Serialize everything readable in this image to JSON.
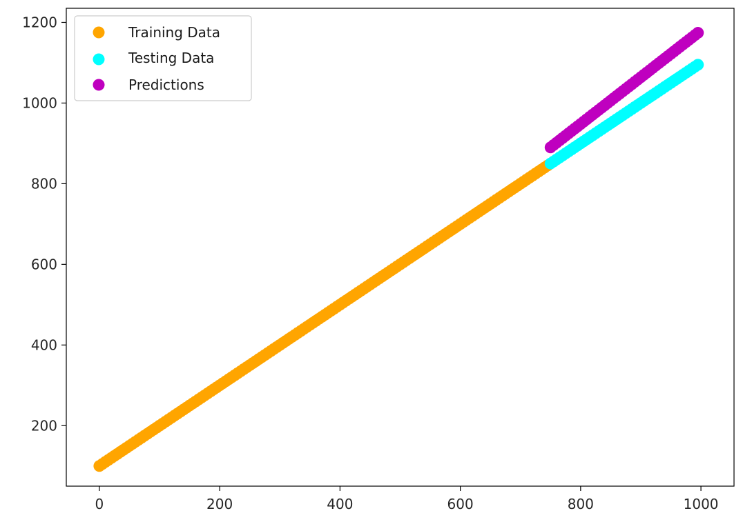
{
  "chart_data": {
    "type": "scatter",
    "title": "",
    "xlabel": "",
    "ylabel": "",
    "xlim": [
      -55,
      1055
    ],
    "ylim": [
      50,
      1235
    ],
    "x_ticks": [
      0,
      200,
      400,
      600,
      800,
      1000
    ],
    "y_ticks": [
      200,
      400,
      600,
      800,
      1000,
      1200
    ],
    "x_tick_labels": [
      "0",
      "200",
      "400",
      "600",
      "800",
      "1000"
    ],
    "y_tick_labels": [
      "200",
      "400",
      "600",
      "800",
      "1000",
      "1200"
    ],
    "grid": false,
    "legend_position": "top-left",
    "series": [
      {
        "name": "Training Data",
        "color": "#ffa500",
        "x_range": [
          0,
          745
        ],
        "x_step": 5,
        "slope": 1.0,
        "intercept": 100
      },
      {
        "name": "Testing Data",
        "color": "#00ffff",
        "x_range": [
          750,
          995
        ],
        "x_step": 5,
        "slope": 1.0,
        "intercept": 100
      },
      {
        "name": "Predictions",
        "color": "#bf00bf",
        "x_range": [
          750,
          995
        ],
        "x_step": 5,
        "slope": 1.16,
        "intercept": 20
      }
    ]
  }
}
